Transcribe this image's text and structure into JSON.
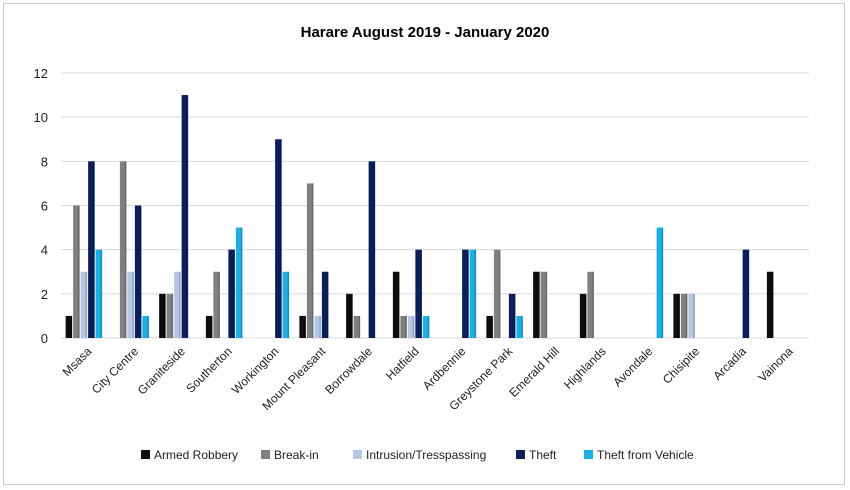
{
  "chart_data": {
    "type": "bar",
    "title": "Harare August 2019 - January  2020",
    "xlabel": "",
    "ylabel": "",
    "ylim": [
      0,
      12
    ],
    "yticks": [
      0,
      2,
      4,
      6,
      8,
      10,
      12
    ],
    "grid": true,
    "legend_position": "bottom",
    "categories": [
      "Msasa",
      "City Centre",
      "Graniteside",
      "Southerton",
      "Workington",
      "Mount Pleasant",
      "Borrowdale",
      "Hatfield",
      "Ardbennie",
      "Greystone Park",
      "Emerald Hill",
      "Highlands",
      "Avondale",
      "Chisipite",
      "Arcadia",
      "Vainona"
    ],
    "series": [
      {
        "name": "Armed Robbery",
        "color": "#0d0d0d",
        "values": [
          1,
          0,
          2,
          1,
          0,
          1,
          2,
          3,
          0,
          1,
          3,
          2,
          0,
          2,
          0,
          3
        ]
      },
      {
        "name": "Break-in",
        "color": "#808080",
        "values": [
          6,
          8,
          2,
          3,
          0,
          7,
          1,
          1,
          0,
          4,
          3,
          3,
          0,
          2,
          0,
          0
        ]
      },
      {
        "name": "Intrusion/Tresspassing",
        "color": "#b4c7e7",
        "values": [
          3,
          3,
          3,
          0,
          0,
          1,
          0,
          1,
          0,
          0,
          0,
          0,
          0,
          2,
          0,
          0
        ]
      },
      {
        "name": "Theft",
        "color": "#0a1f5c",
        "values": [
          8,
          6,
          11,
          4,
          9,
          3,
          8,
          4,
          4,
          2,
          0,
          0,
          0,
          0,
          4,
          0
        ]
      },
      {
        "name": "Theft from Vehicle",
        "color": "#17b0e8",
        "values": [
          4,
          1,
          0,
          5,
          3,
          0,
          0,
          1,
          4,
          1,
          0,
          0,
          5,
          0,
          0,
          0
        ]
      }
    ]
  }
}
